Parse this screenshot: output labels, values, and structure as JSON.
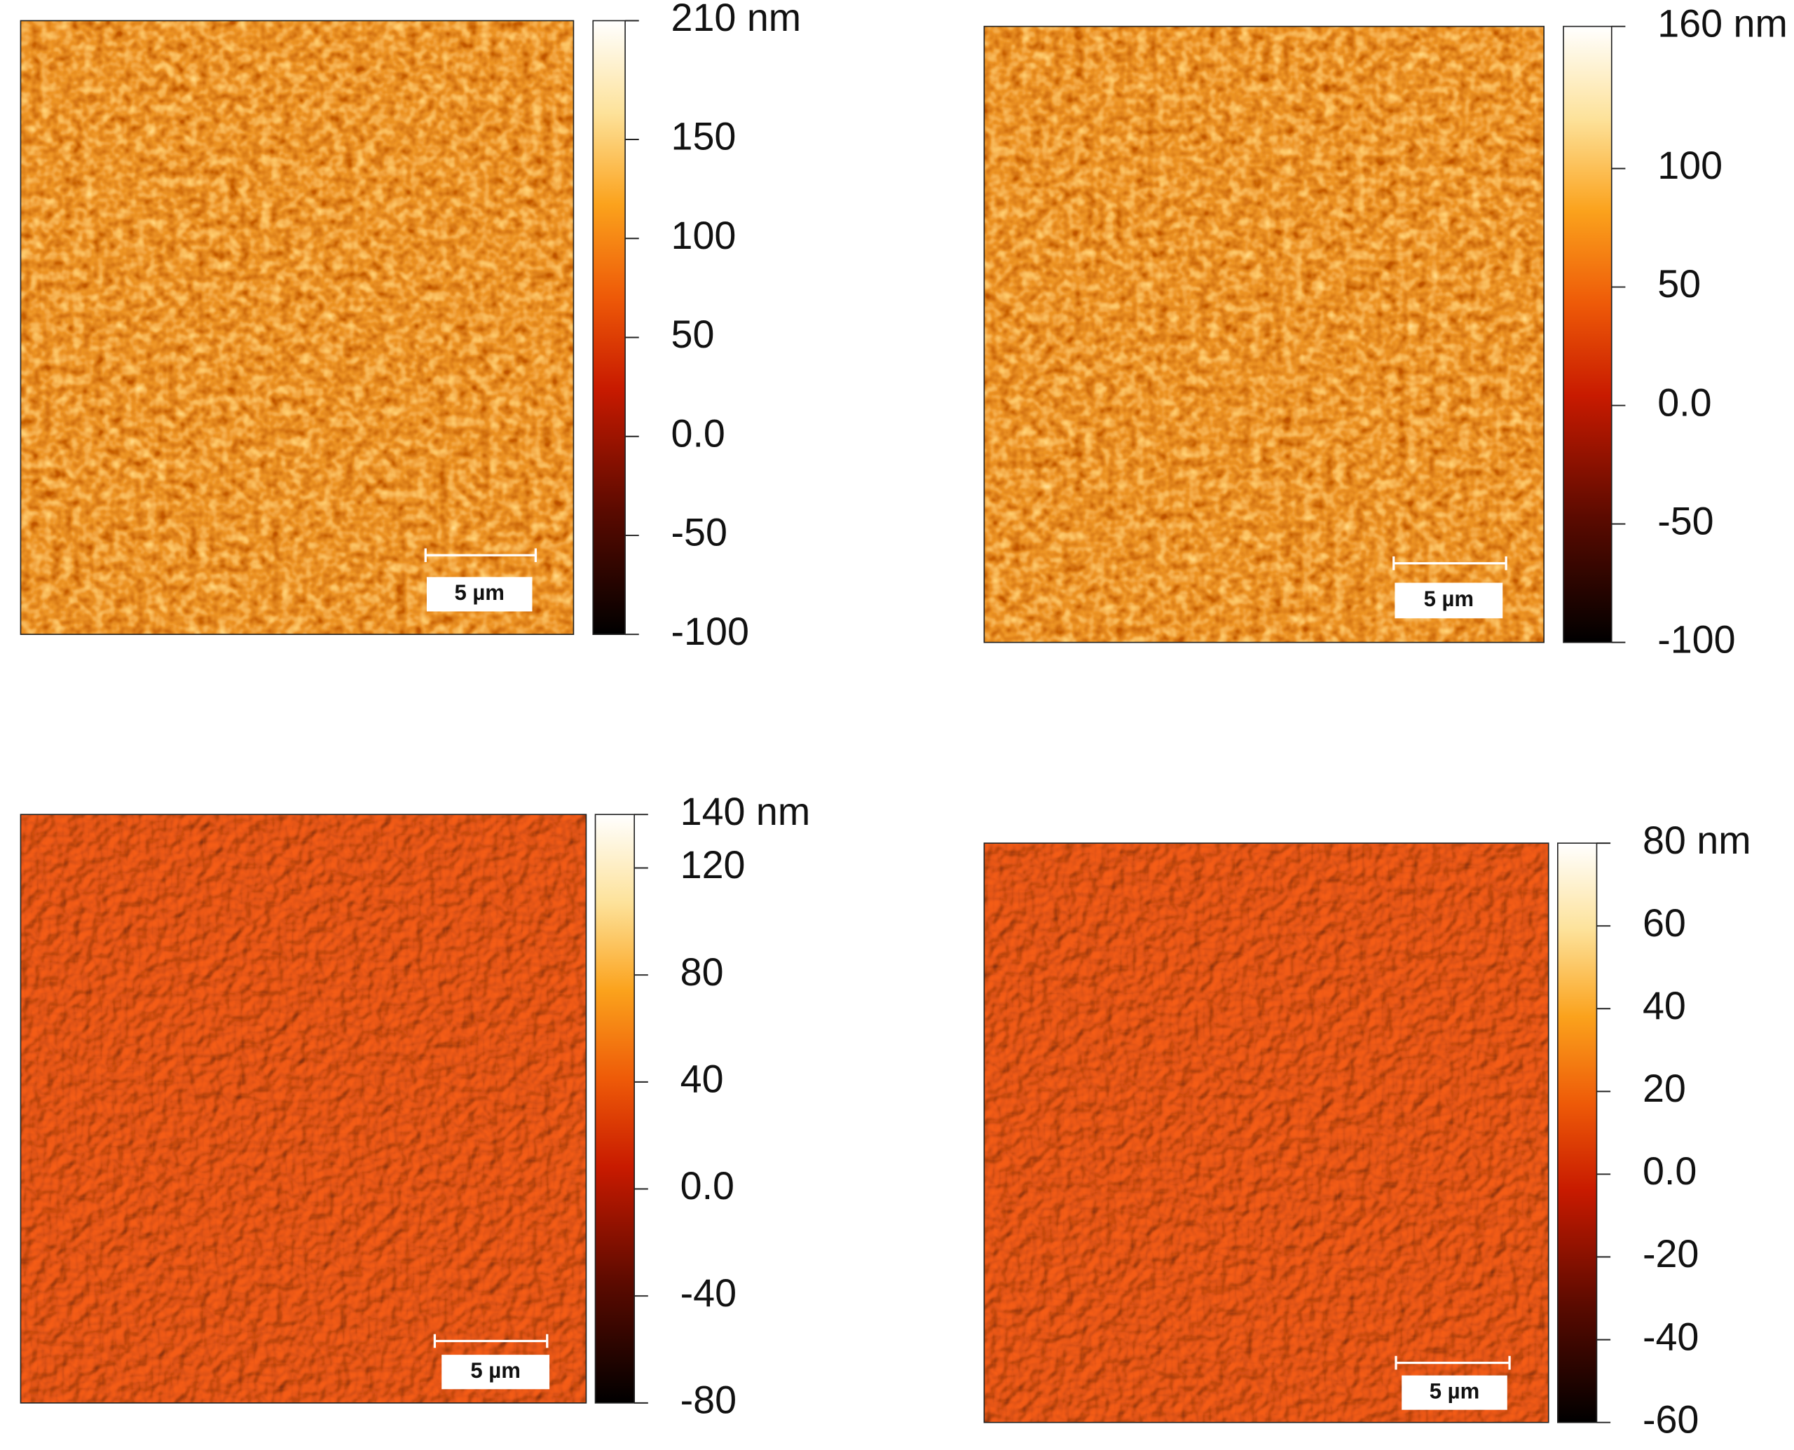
{
  "panels": [
    {
      "colorbar": {
        "lim": [
          -100,
          210
        ],
        "ticks": [
          {
            "value": 210,
            "label": "210 nm"
          },
          150,
          100,
          50,
          {
            "value": 0,
            "label": "0.0"
          },
          -50,
          -100
        ]
      },
      "scale_bar": "5 µm"
    },
    {
      "colorbar": {
        "lim": [
          -100,
          160
        ],
        "ticks": [
          {
            "value": 160,
            "label": "160 nm"
          },
          100,
          50,
          {
            "value": 0,
            "label": "0.0"
          },
          -50,
          -100
        ]
      },
      "scale_bar": "5 µm"
    },
    {
      "colorbar": {
        "lim": [
          -80,
          140
        ],
        "ticks": [
          {
            "value": 140,
            "label": "140 nm"
          },
          120,
          80,
          40,
          {
            "value": 0,
            "label": "0.0"
          },
          -40,
          -80
        ]
      },
      "scale_bar": "5 µm"
    },
    {
      "colorbar": {
        "lim": [
          -60,
          80
        ],
        "ticks": [
          {
            "value": 80,
            "label": "80 nm"
          },
          60,
          40,
          20,
          {
            "value": 0,
            "label": "0.0"
          },
          -20,
          -40,
          -60
        ]
      },
      "scale_bar": "5 µm"
    }
  ]
}
